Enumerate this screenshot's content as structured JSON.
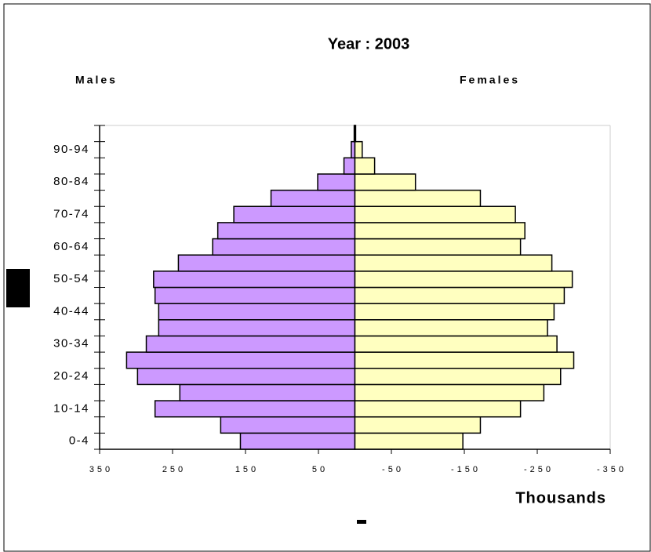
{
  "chart_data": {
    "type": "pyramid",
    "title": "Year : 2003",
    "x_label": "Thousands",
    "categories": [
      "0-4",
      null,
      "10-14",
      null,
      "20-24",
      null,
      "30-34",
      null,
      "40-44",
      null,
      "50-54",
      null,
      "60-64",
      null,
      "70-74",
      null,
      "80-84",
      null,
      "90-94",
      null
    ],
    "series": [
      {
        "name": "Males",
        "color": "#cc99ff",
        "values": [
          157,
          184,
          274,
          240,
          298,
          313,
          286,
          269,
          269,
          274,
          276,
          242,
          195,
          188,
          166,
          115,
          51,
          15,
          5,
          1
        ]
      },
      {
        "name": "Females",
        "color": "#ffffc0",
        "values": [
          -148,
          -172,
          -227,
          -259,
          -282,
          -300,
          -277,
          -264,
          -273,
          -287,
          -298,
          -270,
          -227,
          -233,
          -220,
          -172,
          -83,
          -27,
          -10,
          -1
        ]
      }
    ],
    "xlim": [
      350,
      -350
    ],
    "xticks": [
      350,
      250,
      150,
      50,
      -50,
      -150,
      -250,
      -350
    ]
  }
}
